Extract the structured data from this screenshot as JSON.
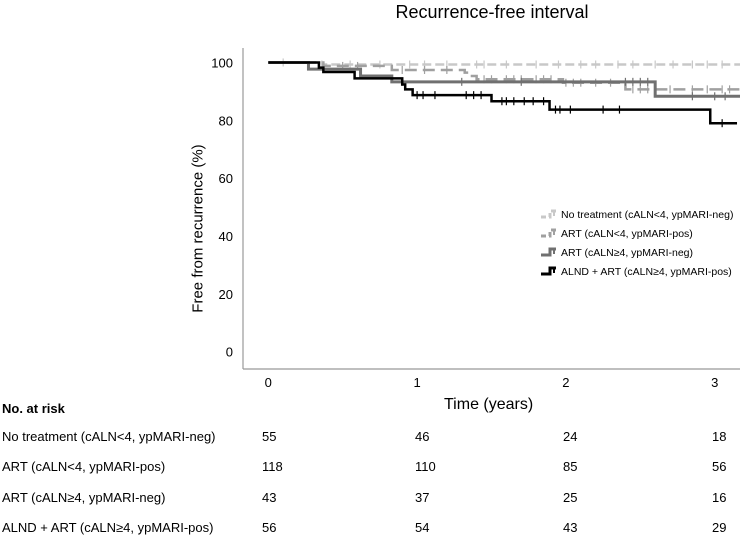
{
  "chart_data": {
    "type": "line",
    "subtype": "kaplan-meier-step",
    "title": "Recurrence-free interval",
    "xlabel": "Time (years)",
    "ylabel": "Free from recurrence (%)",
    "xlim": [
      -0.17,
      3.17
    ],
    "ylim": [
      -6,
      105
    ],
    "xticks": [
      "0",
      "1",
      "2",
      "3"
    ],
    "yticks": [
      "0",
      "20",
      "40",
      "60",
      "80",
      "100"
    ],
    "grid": false,
    "legend_position": "center-right",
    "series": [
      {
        "name": "No treatment (cALN<4, ypMARI-neg)",
        "color": "#c8c8c8",
        "dash": true,
        "steps": [
          [
            0,
            100
          ],
          [
            0.36,
            99.3
          ],
          [
            3.17,
            99.3
          ]
        ],
        "censor": [
          0.1,
          0.36,
          0.55,
          0.75,
          0.95,
          1.05,
          1.2,
          1.4,
          1.45,
          1.6,
          1.8,
          1.95,
          2.1,
          2.2,
          2.35,
          2.45,
          2.6,
          2.72,
          2.85,
          2.95,
          3.05
        ]
      },
      {
        "name": "ART (cALN<4, ypMARI-pos)",
        "color": "#a0a0a0",
        "dash": true,
        "steps": [
          [
            0,
            100
          ],
          [
            0.37,
            98.8
          ],
          [
            0.83,
            97.4
          ],
          [
            1.32,
            96.5
          ],
          [
            1.36,
            95.3
          ],
          [
            1.4,
            94.2
          ],
          [
            1.98,
            93
          ],
          [
            2.4,
            90.7
          ],
          [
            3.17,
            90.7
          ]
        ],
        "censor": [
          0.5,
          0.6,
          0.9,
          1.05,
          1.2,
          1.45,
          1.5,
          1.6,
          1.65,
          1.7,
          1.8,
          1.85,
          1.9,
          2.0,
          2.05,
          2.1,
          2.2,
          2.3,
          2.45,
          2.5,
          2.55,
          2.7,
          2.85,
          2.95,
          3.05,
          3.1
        ]
      },
      {
        "name": "ART (cALN≥4, ypMARI-neg)",
        "color": "#707070",
        "dash": false,
        "steps": [
          [
            0,
            100
          ],
          [
            0.27,
            97.7
          ],
          [
            0.62,
            95.3
          ],
          [
            0.83,
            93.3
          ],
          [
            2.6,
            88.3
          ],
          [
            3.17,
            88.3
          ]
        ],
        "censor": [
          0.9,
          1.3,
          1.7,
          2.4,
          2.45,
          2.5,
          2.55,
          2.85,
          3.0,
          3.07
        ]
      },
      {
        "name": "ALND + ART (cALN≥4, ypMARI-pos)",
        "color": "#000000",
        "dash": false,
        "steps": [
          [
            0,
            100
          ],
          [
            0.34,
            98.2
          ],
          [
            0.37,
            96.7
          ],
          [
            0.58,
            94.5
          ],
          [
            0.9,
            92.4
          ],
          [
            0.92,
            90.7
          ],
          [
            0.97,
            88.7
          ],
          [
            1.5,
            86.6
          ],
          [
            1.89,
            83.7
          ],
          [
            2.97,
            79
          ],
          [
            3.15,
            79
          ]
        ],
        "censor": [
          1.0,
          1.04,
          1.12,
          1.33,
          1.38,
          1.43,
          1.57,
          1.6,
          1.65,
          1.72,
          1.78,
          1.85,
          1.93,
          1.96,
          2.03,
          2.25,
          2.36,
          3.05
        ]
      }
    ]
  },
  "risk_table": {
    "heading": "No. at risk",
    "rows": [
      {
        "label": "No treatment (cALN<4, ypMARI-neg)",
        "values": [
          "55",
          "46",
          "24",
          "18"
        ]
      },
      {
        "label": "ART (cALN<4, ypMARI-pos)",
        "values": [
          "118",
          "110",
          "85",
          "56"
        ]
      },
      {
        "label": "ART (cALN≥4, ypMARI-neg)",
        "values": [
          "43",
          "37",
          "25",
          "16"
        ]
      },
      {
        "label": "ALND + ART (cALN≥4, ypMARI-pos)",
        "values": [
          "56",
          "54",
          "43",
          "29"
        ]
      }
    ]
  }
}
